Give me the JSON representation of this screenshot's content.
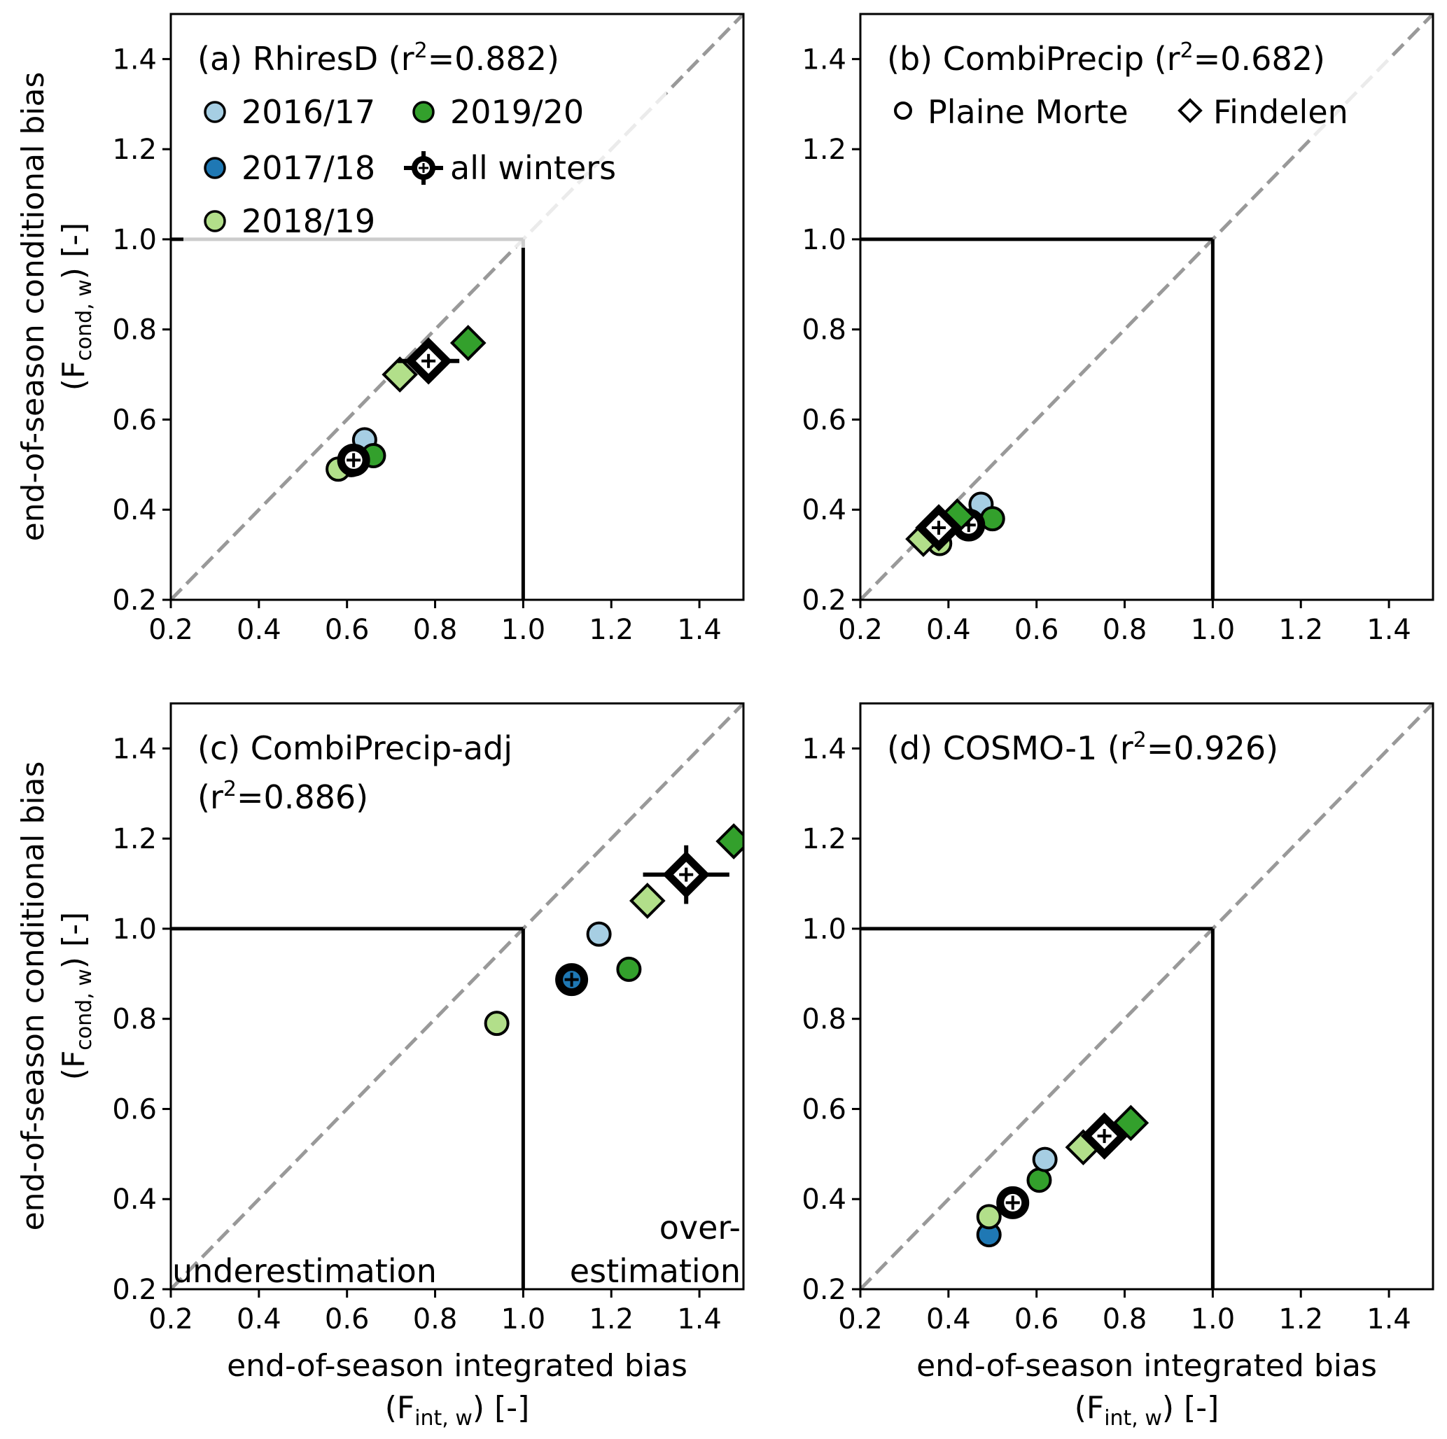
{
  "colors": {
    "2016/17": "#a6cee3",
    "2017/18": "#1f78b4",
    "2018/19": "#b2df8a",
    "2019/20": "#33a02c",
    "all winters": "#ffffff",
    "one_to_one": "#999999",
    "box": "#000000"
  },
  "axes": {
    "xlabel_line1": "end-of-season integrated bias",
    "xlabel_line2": "(F",
    "xlabel_sub": "int, w",
    "xlabel_tail": ")   [-]",
    "ylabel_line1": "end-of-season conditional bias",
    "ylabel_line2": "(F",
    "ylabel_sub": "cond, w",
    "ylabel_tail": ")   [-]",
    "ticks": [
      "0.2",
      "0.4",
      "0.6",
      "0.8",
      "1.0",
      "1.2",
      "1.4"
    ]
  },
  "legend_a": {
    "entries": [
      {
        "label": "2016/17",
        "marker": "circle",
        "color_key": "2016/17"
      },
      {
        "label": "2019/20",
        "marker": "circle",
        "color_key": "2019/20"
      },
      {
        "label": "2017/18",
        "marker": "circle",
        "color_key": "2017/18"
      },
      {
        "label": "all winters",
        "marker": "errorbar",
        "color_key": "all winters"
      },
      {
        "label": "2018/19",
        "marker": "circle",
        "color_key": "2018/19"
      }
    ]
  },
  "legend_b": {
    "entries": [
      {
        "label": "Plaine Morte",
        "marker": "circle"
      },
      {
        "label": "Findelen",
        "marker": "diamond"
      }
    ]
  },
  "annotations": {
    "under": "underestimation",
    "over_line1": "over-",
    "over_line2": "estimation"
  },
  "chart_data": [
    {
      "type": "scatter",
      "panel": "a",
      "title": "(a) RhiresD (r",
      "title_sup": "2",
      "title_tail": "=0.882)",
      "r2": 0.882,
      "xlim": [
        0.2,
        1.5
      ],
      "ylim": [
        0.2,
        1.5
      ],
      "xticks": [
        0.2,
        0.4,
        0.6,
        0.8,
        1.0,
        1.2,
        1.4
      ],
      "yticks": [
        0.2,
        0.4,
        0.6,
        0.8,
        1.0,
        1.2,
        1.4
      ],
      "xlabel": "",
      "ylabel": "end-of-season conditional bias (F_cond,w) [-]",
      "reference_lines": [
        "1:1 dashed",
        "x=1.0 box",
        "y=1.0 box"
      ],
      "points": [
        {
          "winter": "2016/17",
          "site": "Plaine Morte",
          "x": 0.64,
          "y": 0.555
        },
        {
          "winter": "2019/20",
          "site": "Plaine Morte",
          "x": 0.66,
          "y": 0.52
        },
        {
          "winter": "2017/18",
          "site": "Plaine Morte",
          "x": 0.61,
          "y": 0.5
        },
        {
          "winter": "2018/19",
          "site": "Plaine Morte",
          "x": 0.58,
          "y": 0.49
        },
        {
          "winter": "all winters",
          "site": "Plaine Morte",
          "x": 0.615,
          "y": 0.51,
          "xerr": 0.01,
          "yerr": 0.01
        },
        {
          "winter": "2018/19",
          "site": "Findelen",
          "x": 0.72,
          "y": 0.7
        },
        {
          "winter": "2019/20",
          "site": "Findelen",
          "x": 0.875,
          "y": 0.77
        },
        {
          "winter": "all winters",
          "site": "Findelen",
          "x": 0.785,
          "y": 0.73,
          "xerr": 0.07,
          "yerr": 0.02
        }
      ]
    },
    {
      "type": "scatter",
      "panel": "b",
      "title": "(b) CombiPrecip (r",
      "title_sup": "2",
      "title_tail": "=0.682)",
      "r2": 0.682,
      "xlim": [
        0.2,
        1.5
      ],
      "ylim": [
        0.2,
        1.5
      ],
      "xticks": [
        0.2,
        0.4,
        0.6,
        0.8,
        1.0,
        1.2,
        1.4
      ],
      "yticks": [
        0.2,
        0.4,
        0.6,
        0.8,
        1.0,
        1.2,
        1.4
      ],
      "xlabel": "",
      "ylabel": "",
      "points": [
        {
          "winter": "2016/17",
          "site": "Plaine Morte",
          "x": 0.474,
          "y": 0.412
        },
        {
          "winter": "2019/20",
          "site": "Plaine Morte",
          "x": 0.5,
          "y": 0.38
        },
        {
          "winter": "2017/18",
          "site": "Plaine Morte",
          "x": 0.446,
          "y": 0.366
        },
        {
          "winter": "2018/19",
          "site": "Plaine Morte",
          "x": 0.38,
          "y": 0.325
        },
        {
          "winter": "all winters",
          "site": "Plaine Morte",
          "x": 0.446,
          "y": 0.366,
          "xerr": 0.01,
          "yerr": 0.01
        },
        {
          "winter": "2019/20",
          "site": "Findelen",
          "x": 0.42,
          "y": 0.385
        },
        {
          "winter": "2018/19",
          "site": "Findelen",
          "x": 0.343,
          "y": 0.335
        },
        {
          "winter": "all winters",
          "site": "Findelen",
          "x": 0.378,
          "y": 0.36,
          "xerr": 0.02,
          "yerr": 0.02
        }
      ]
    },
    {
      "type": "scatter",
      "panel": "c",
      "title": "(c) CombiPrecip-adj",
      "title_line2": "(r",
      "title_sup": "2",
      "title_tail": "=0.886)",
      "r2": 0.886,
      "xlim": [
        0.2,
        1.5
      ],
      "ylim": [
        0.2,
        1.5
      ],
      "xticks": [
        0.2,
        0.4,
        0.6,
        0.8,
        1.0,
        1.2,
        1.4
      ],
      "yticks": [
        0.2,
        0.4,
        0.6,
        0.8,
        1.0,
        1.2,
        1.4
      ],
      "xlabel": "end-of-season integrated bias (F_int,w) [-]",
      "ylabel": "end-of-season conditional bias (F_cond,w) [-]",
      "points": [
        {
          "winter": "2018/19",
          "site": "Plaine Morte",
          "x": 0.94,
          "y": 0.79
        },
        {
          "winter": "2017/18",
          "site": "Plaine Morte",
          "x": 1.11,
          "y": 0.887
        },
        {
          "winter": "all winters",
          "site": "Plaine Morte",
          "x": 1.11,
          "y": 0.887,
          "xerr": 0.0,
          "yerr": 0.0
        },
        {
          "winter": "2016/17",
          "site": "Plaine Morte",
          "x": 1.172,
          "y": 0.988
        },
        {
          "winter": "2019/20",
          "site": "Plaine Morte",
          "x": 1.24,
          "y": 0.91
        },
        {
          "winter": "2018/19",
          "site": "Findelen",
          "x": 1.282,
          "y": 1.062
        },
        {
          "winter": "2019/20",
          "site": "Findelen",
          "x": 1.478,
          "y": 1.194
        },
        {
          "winter": "all winters",
          "site": "Findelen",
          "x": 1.37,
          "y": 1.12,
          "xerr": 0.098,
          "yerr": 0.065
        }
      ]
    },
    {
      "type": "scatter",
      "panel": "d",
      "title": "(d) COSMO-1 (r",
      "title_sup": "2",
      "title_tail": "=0.926)",
      "r2": 0.926,
      "xlim": [
        0.2,
        1.5
      ],
      "ylim": [
        0.2,
        1.5
      ],
      "xticks": [
        0.2,
        0.4,
        0.6,
        0.8,
        1.0,
        1.2,
        1.4
      ],
      "yticks": [
        0.2,
        0.4,
        0.6,
        0.8,
        1.0,
        1.2,
        1.4
      ],
      "xlabel": "end-of-season integrated bias (F_int,w) [-]",
      "ylabel": "",
      "points": [
        {
          "winter": "2017/18",
          "site": "Plaine Morte",
          "x": 0.492,
          "y": 0.321
        },
        {
          "winter": "2018/19",
          "site": "Plaine Morte",
          "x": 0.492,
          "y": 0.361
        },
        {
          "winter": "all winters",
          "site": "Plaine Morte",
          "x": 0.546,
          "y": 0.392,
          "xerr": 0.005,
          "yerr": 0.005
        },
        {
          "winter": "2019/20",
          "site": "Plaine Morte",
          "x": 0.606,
          "y": 0.442
        },
        {
          "winter": "2016/17",
          "site": "Plaine Morte",
          "x": 0.619,
          "y": 0.488
        },
        {
          "winter": "2018/19",
          "site": "Findelen",
          "x": 0.706,
          "y": 0.515
        },
        {
          "winter": "2019/20",
          "site": "Findelen",
          "x": 0.814,
          "y": 0.569
        },
        {
          "winter": "all winters",
          "site": "Findelen",
          "x": 0.754,
          "y": 0.54,
          "xerr": 0.015,
          "yerr": 0.01
        }
      ]
    }
  ]
}
